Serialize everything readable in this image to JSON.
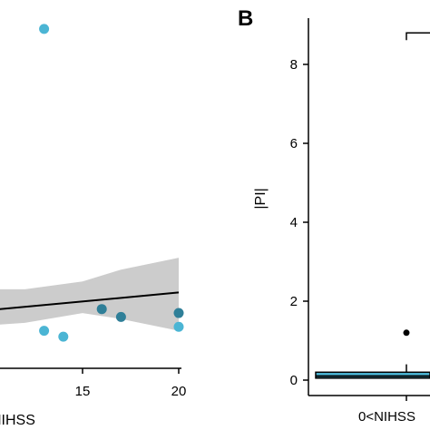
{
  "colors": {
    "point": "#4bb5d4",
    "point_dark": "#2f7f98",
    "ci_band": "#cccccc",
    "box_fill": "#4bb5d4",
    "outlier": "#000000",
    "axis": "#000000"
  },
  "chart_data": [
    {
      "type": "scatter",
      "xlabel": "NIHSS",
      "x_ticks": [
        "15",
        "20"
      ],
      "xlim": [
        9,
        20.5
      ],
      "ylim": [
        -0.3,
        9.3
      ],
      "grid": false,
      "points": [
        {
          "x": 13,
          "y": 8.9
        },
        {
          "x": 16,
          "y": 1.8
        },
        {
          "x": 17,
          "y": 1.6
        },
        {
          "x": 20,
          "y": 1.7
        },
        {
          "x": 20,
          "y": 1.35
        },
        {
          "x": 13,
          "y": 1.25
        },
        {
          "x": 14,
          "y": 1.1
        }
      ],
      "fit_line": {
        "x": [
          9,
          20
        ],
        "y": [
          1.72,
          2.22
        ]
      },
      "ci_band": {
        "x": [
          9,
          12,
          15,
          17,
          20
        ],
        "upper": [
          2.3,
          2.3,
          2.5,
          2.8,
          3.1
        ],
        "lower": [
          1.35,
          1.45,
          1.7,
          1.55,
          1.25
        ]
      }
    },
    {
      "type": "box",
      "panel_label": "B",
      "ylabel": "|PI|",
      "y_ticks": [
        "0",
        "2",
        "4",
        "6",
        "8"
      ],
      "ylim": [
        -0.3,
        9.3
      ],
      "category_label": "0<NIHSS",
      "box": {
        "q1": 0.05,
        "median": 0.1,
        "q3": 0.2,
        "whisker_high": 0.4
      },
      "outliers": [
        1.2
      ],
      "significance_bracket_y": 8.8
    }
  ]
}
